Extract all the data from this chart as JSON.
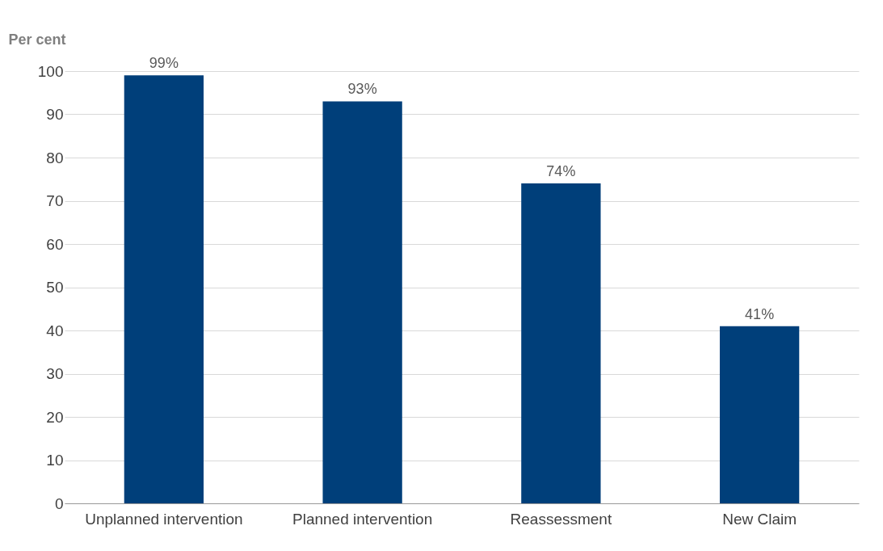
{
  "chart_data": {
    "type": "bar",
    "ylabel": "Per cent",
    "categories": [
      "Unplanned intervention",
      "Planned intervention",
      "Reassessment",
      "New Claim"
    ],
    "values": [
      99,
      93,
      74,
      41
    ],
    "value_labels": [
      "99%",
      "93%",
      "74%",
      "41%"
    ],
    "color": "#003f7a",
    "ylim": [
      0,
      100
    ],
    "yticks": [
      0,
      10,
      20,
      30,
      40,
      50,
      60,
      70,
      80,
      90,
      100
    ],
    "grid": "y"
  }
}
